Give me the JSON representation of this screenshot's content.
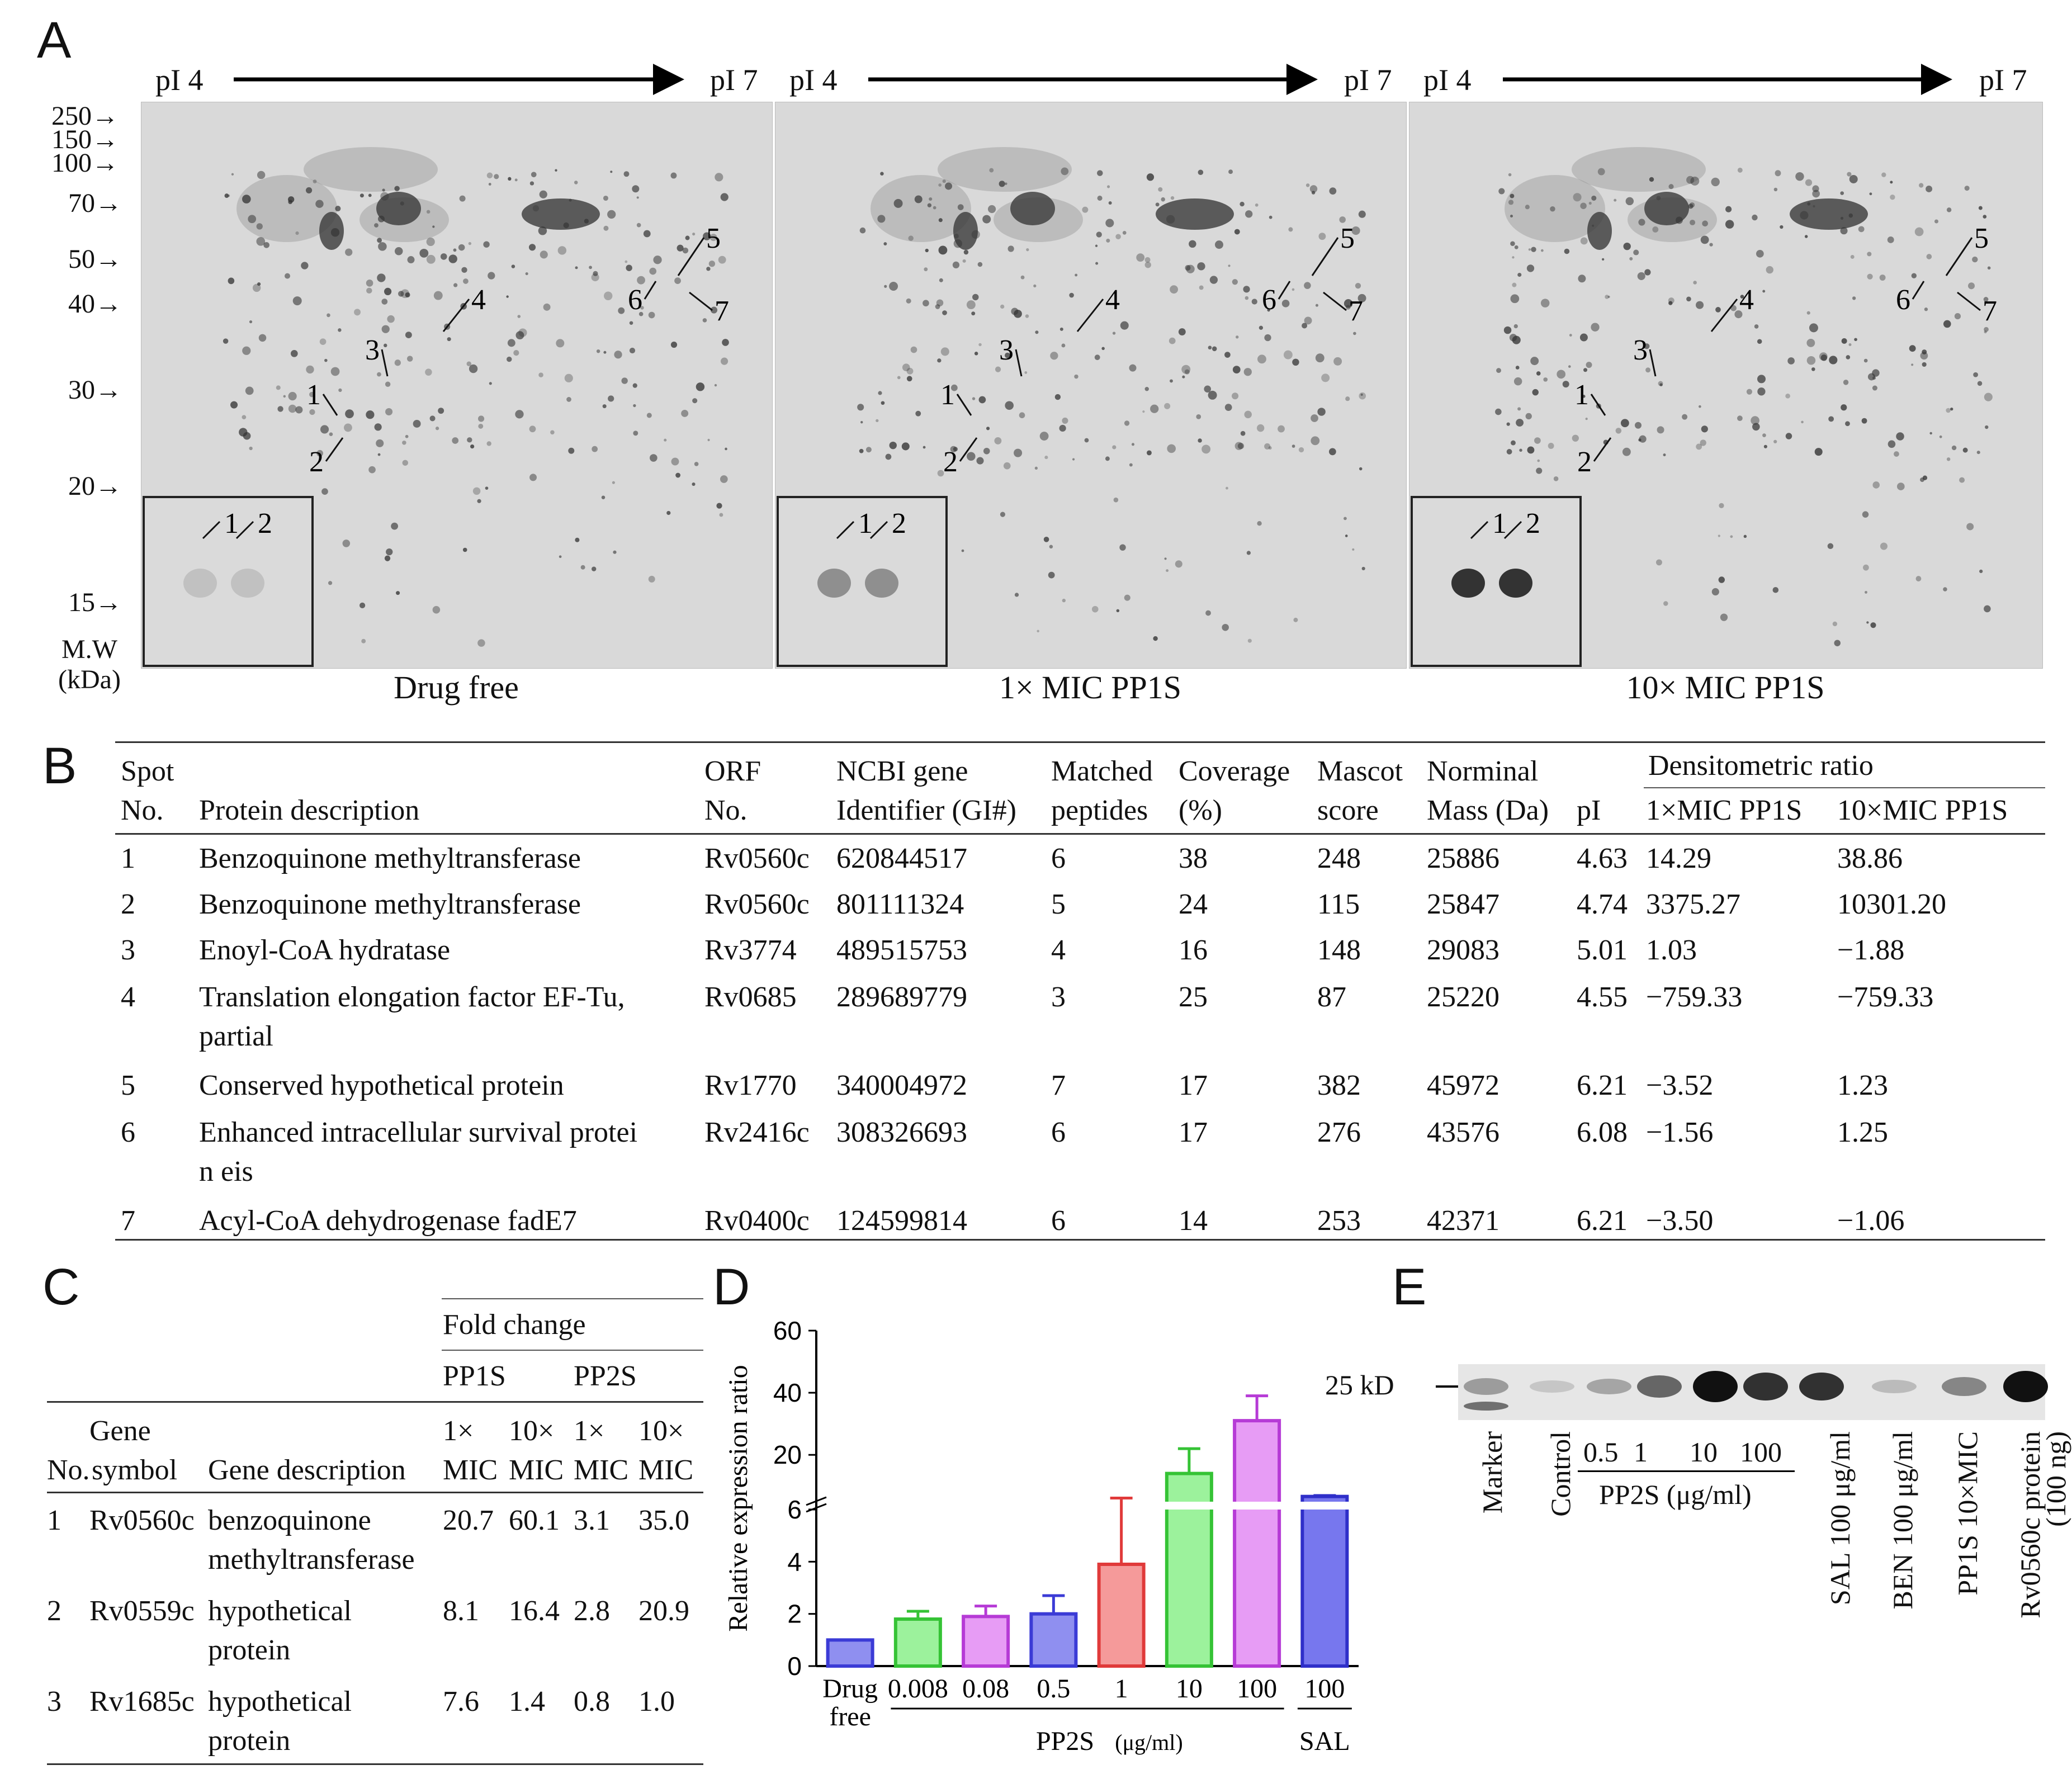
{
  "panel_letters": {
    "a": "A",
    "b": "B",
    "c": "C",
    "d": "D",
    "e": "E"
  },
  "panelA": {
    "pi_start": "pI 4",
    "pi_end": "pI 7",
    "mw_markers": [
      "250→",
      "150→",
      "100→",
      "70→",
      "50→",
      "40→",
      "30→",
      "20→",
      "15→"
    ],
    "mw_axis_label_line1": "M.W",
    "mw_axis_label_line2": "(kDa)",
    "gels": [
      {
        "caption": "Drug free"
      },
      {
        "caption": "1× MIC PP1S"
      },
      {
        "caption": "10× MIC PP1S"
      }
    ],
    "spot_labels": [
      "1",
      "2",
      "3",
      "4",
      "5",
      "6",
      "7"
    ],
    "inset_labels": [
      "1",
      "2"
    ]
  },
  "panelB": {
    "headers": {
      "spot_1": "Spot",
      "spot_2": "No.",
      "desc": "Protein description",
      "orf_1": "ORF",
      "orf_2": "No.",
      "gi_1": "NCBI gene",
      "gi_2": "Identifier (GI#)",
      "pep_1": "Matched",
      "pep_2": "peptides",
      "cov_1": "Coverage",
      "cov_2": "(%)",
      "mascot_1": "Mascot",
      "mascot_2": "score",
      "mass_1": "Norminal",
      "mass_2": "Mass (Da)",
      "pi": "pI",
      "dens": "Densitometric ratio",
      "r1": "1×MIC PP1S",
      "r10": "10×MIC PP1S"
    },
    "rows": [
      {
        "no": "1",
        "desc": "Benzoquinone methyltransferase",
        "desc2": "",
        "orf": "Rv0560c",
        "gi": "620844517",
        "pep": "6",
        "cov": "38",
        "mascot": "248",
        "mass": "25886",
        "pi": "4.63",
        "r1": "14.29",
        "r10": "38.86"
      },
      {
        "no": "2",
        "desc": "Benzoquinone methyltransferase",
        "desc2": "",
        "orf": "Rv0560c",
        "gi": "801111324",
        "pep": "5",
        "cov": "24",
        "mascot": "115",
        "mass": "25847",
        "pi": "4.74",
        "r1": "3375.27",
        "r10": "10301.20"
      },
      {
        "no": "3",
        "desc": "Enoyl-CoA hydratase",
        "desc2": "",
        "orf": "Rv3774",
        "gi": "489515753",
        "pep": "4",
        "cov": "16",
        "mascot": "148",
        "mass": "29083",
        "pi": "5.01",
        "r1": "1.03",
        "r10": "−1.88"
      },
      {
        "no": "4",
        "desc": "Translation  elongation  factor  EF-Tu,",
        "desc2": "partial",
        "orf": "Rv0685",
        "gi": "289689779",
        "pep": "3",
        "cov": "25",
        "mascot": "87",
        "mass": "25220",
        "pi": "4.55",
        "r1": "−759.33",
        "r10": "−759.33"
      },
      {
        "no": "5",
        "desc": "Conserved hypothetical protein",
        "desc2": "",
        "orf": "Rv1770",
        "gi": "340004972",
        "pep": "7",
        "cov": "17",
        "mascot": "382",
        "mass": "45972",
        "pi": "6.21",
        "r1": "−3.52",
        "r10": "1.23"
      },
      {
        "no": "6",
        "desc": "Enhanced intracellular survival protei",
        "desc2": "n eis",
        "orf": "Rv2416c",
        "gi": "308326693",
        "pep": "6",
        "cov": "17",
        "mascot": "276",
        "mass": "43576",
        "pi": "6.08",
        "r1": "−1.56",
        "r10": "1.25"
      },
      {
        "no": "7",
        "desc": "Acyl-CoA dehydrogenase fadE7",
        "desc2": "",
        "orf": "Rv0400c",
        "gi": "124599814",
        "pep": "6",
        "cov": "14",
        "mascot": "253",
        "mass": "42371",
        "pi": "6.21",
        "r1": "−3.50",
        "r10": "−1.06"
      }
    ]
  },
  "panelC": {
    "fold_change": "Fold change",
    "pp1s": "PP1S",
    "pp2s": "PP2S",
    "gene_1": "Gene",
    "no": "No.",
    "symbol": "symbol",
    "desc": "Gene description",
    "mult_1x": "1×",
    "mult_10x": "10×",
    "mic": "MIC",
    "rows": [
      {
        "no": "1",
        "sym": "Rv0560c",
        "desc": "benzoquinone",
        "desc2": "methyltransferase",
        "a": "20.7",
        "b": "60.1",
        "c": "3.1",
        "d": "35.0"
      },
      {
        "no": "2",
        "sym": "Rv0559c",
        "desc": "hypothetical",
        "desc2": "protein",
        "a": "8.1",
        "b": "16.4",
        "c": "2.8",
        "d": "20.9"
      },
      {
        "no": "3",
        "sym": "Rv1685c",
        "desc": "hypothetical",
        "desc2": "protein",
        "a": "7.6",
        "b": "1.4",
        "c": "0.8",
        "d": "1.0"
      }
    ]
  },
  "chart_data": {
    "type": "bar",
    "title": "",
    "ylabel": "Relative expression ratio",
    "xlabel": "",
    "categories": [
      "Drug free",
      "0.008",
      "0.08",
      "0.5",
      "1",
      "10",
      "100",
      "100"
    ],
    "category_label_lines": [
      "Drug",
      "free"
    ],
    "group_labels": [
      {
        "label": "PP2S",
        "unit": "(μg/ml)"
      },
      {
        "label": "SAL"
      }
    ],
    "values": [
      1.0,
      1.8,
      1.9,
      2.0,
      3.9,
      14,
      31,
      6.6
    ],
    "errors": [
      0.0,
      0.3,
      0.4,
      0.7,
      2.2,
      8,
      8,
      0.3
    ],
    "colors": [
      "#3b3bd6",
      "#35c335",
      "#b63bd6",
      "#3b3bd6",
      "#e03a3a",
      "#35c335",
      "#b63bd6",
      "#2f2fc9"
    ],
    "fill_colors": [
      "#8f8ff0",
      "#9cf29c",
      "#e79cf5",
      "#8f8ff0",
      "#f59a9a",
      "#9cf29c",
      "#e79cf5",
      "#7777ee"
    ],
    "y_axis_broken": true,
    "y_ticks_lower": [
      0,
      2,
      4,
      6
    ],
    "y_ticks_upper": [
      20,
      40,
      60
    ],
    "ylim_lower": [
      0,
      6
    ],
    "ylim_upper": [
      6,
      60
    ]
  },
  "panelE": {
    "marker_size": "25 kD",
    "lanes": [
      "Marker",
      "Control",
      "0.5",
      "1",
      "10",
      "100",
      "SAL 100 μg/ml",
      "BEN 100 μg/ml",
      "PP1S 10×MIC",
      "Rv0560c protein"
    ],
    "protein_amount": "(100 ng)",
    "group": "PP2S (μg/ml)",
    "band_intensity": [
      0.35,
      0.15,
      0.3,
      0.6,
      1.0,
      0.85,
      0.85,
      0.2,
      0.45,
      1.0
    ]
  }
}
